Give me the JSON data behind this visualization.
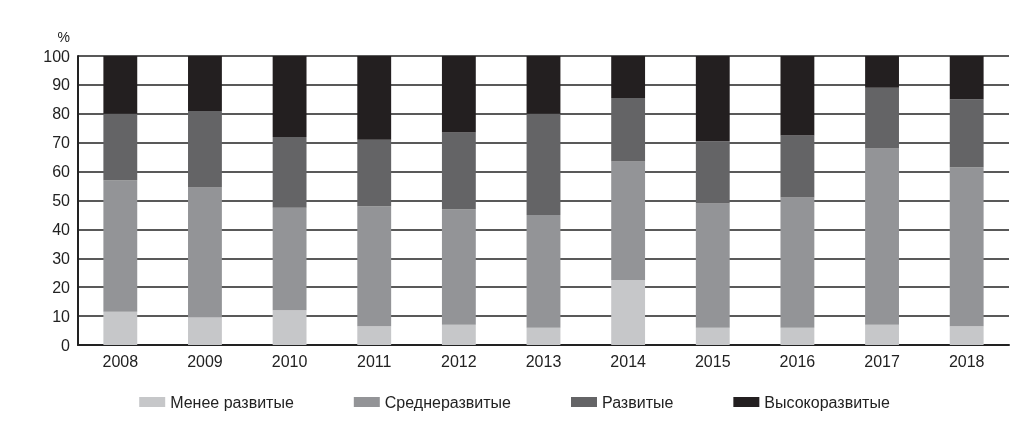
{
  "chart_data": {
    "type": "bar",
    "stacked": true,
    "ylabel": "%",
    "categories": [
      "2008",
      "2009",
      "2010",
      "2011",
      "2012",
      "2013",
      "2014",
      "2015",
      "2016",
      "2017",
      "2018"
    ],
    "series": [
      {
        "name": "Менее развитые",
        "color": "#c6c7c9",
        "values": [
          11.5,
          9.5,
          12,
          6.5,
          7,
          6,
          22.5,
          6,
          6,
          7,
          6.5
        ]
      },
      {
        "name": "Среднеразвитые",
        "color": "#939497",
        "values": [
          45.5,
          45,
          35.5,
          41.5,
          40,
          39,
          41,
          43,
          45,
          61,
          55
        ]
      },
      {
        "name": "Развитые",
        "color": "#646466",
        "values": [
          23,
          26.5,
          24.5,
          23,
          26.5,
          35,
          22,
          21.5,
          21.5,
          21,
          23.5
        ]
      },
      {
        "name": "Высокоразвитые",
        "color": "#231f20",
        "values": [
          20,
          19,
          28,
          29,
          26.5,
          20,
          14.5,
          29.5,
          27.5,
          11,
          15
        ]
      }
    ],
    "ylim": [
      0,
      100
    ],
    "yticks": [
      0,
      10,
      20,
      30,
      40,
      50,
      60,
      70,
      80,
      90,
      100
    ],
    "grid": "y",
    "legend": "bottom"
  }
}
